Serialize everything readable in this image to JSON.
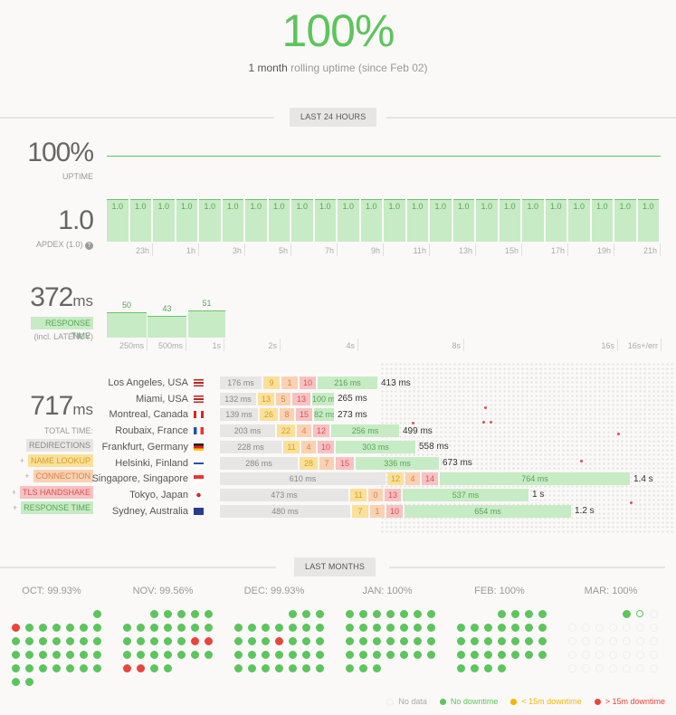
{
  "header": {
    "uptime_pct": "100%",
    "subtitle_bold": "1 month",
    "subtitle_rest": " rolling uptime (since Feb 02)"
  },
  "section_24h": {
    "label": "LAST 24 HOURS"
  },
  "uptime": {
    "value": "100%",
    "label": "UPTIME"
  },
  "apdex": {
    "value": "1.0",
    "label": "APDEX (1.0)",
    "bars": [
      "1.0",
      "1.0",
      "1.0",
      "1.0",
      "1.0",
      "1.0",
      "1.0",
      "1.0",
      "1.0",
      "1.0",
      "1.0",
      "1.0",
      "1.0",
      "1.0",
      "1.0",
      "1.0",
      "1.0",
      "1.0",
      "1.0",
      "1.0",
      "1.0",
      "1.0",
      "1.0",
      "1.0"
    ],
    "ticks": [
      "23h",
      "1h",
      "3h",
      "5h",
      "7h",
      "9h",
      "11h",
      "13h",
      "15h",
      "17h",
      "19h",
      "21h"
    ]
  },
  "response": {
    "value": "372",
    "unit": "ms",
    "label": "RESPONSE TIME",
    "sublabel": "(incl. LATENCY)",
    "bars": [
      50,
      43,
      51
    ],
    "ticks": [
      "250ms",
      "500ms",
      "1s",
      "2s",
      "4s",
      "8s",
      "16s",
      "16s+/err"
    ]
  },
  "total": {
    "value": "717",
    "unit": "ms",
    "label": "TOTAL TIME:",
    "legend": [
      "REDIRECTIONS",
      "NAME LOOKUP",
      "CONNECTION",
      "TLS HANDSHAKE",
      "RESPONSE TIME"
    ],
    "plus": "+"
  },
  "locations": [
    {
      "name": "Los Angeles, USA",
      "flag": "us",
      "redir": "176 ms",
      "dns": "9",
      "con": "1",
      "tls": "10",
      "resp": "216 ms",
      "total": "413 ms"
    },
    {
      "name": "Miami, USA",
      "flag": "us",
      "redir": "132 ms",
      "dns": "13",
      "con": "5",
      "tls": "13",
      "resp": "100 ms",
      "total": "265 ms"
    },
    {
      "name": "Montreal, Canada",
      "flag": "ca",
      "redir": "139 ms",
      "dns": "26",
      "con": "8",
      "tls": "15",
      "resp": "82 ms",
      "total": "273 ms"
    },
    {
      "name": "Roubaix, France",
      "flag": "fr",
      "redir": "203 ms",
      "dns": "22",
      "con": "4",
      "tls": "12",
      "resp": "256 ms",
      "total": "499 ms"
    },
    {
      "name": "Frankfurt, Germany",
      "flag": "de",
      "redir": "228 ms",
      "dns": "11",
      "con": "4",
      "tls": "10",
      "resp": "303 ms",
      "total": "558 ms"
    },
    {
      "name": "Helsinki, Finland",
      "flag": "fi",
      "redir": "286 ms",
      "dns": "28",
      "con": "7",
      "tls": "15",
      "resp": "336 ms",
      "total": "673 ms"
    },
    {
      "name": "Singapore, Singapore",
      "flag": "sg",
      "redir": "610 ms",
      "dns": "12",
      "con": "4",
      "tls": "14",
      "resp": "764 ms",
      "total": "1.4 s"
    },
    {
      "name": "Tokyo, Japan",
      "flag": "jp",
      "redir": "473 ms",
      "dns": "11",
      "con": "0",
      "tls": "13",
      "resp": "537 ms",
      "total": "1 s"
    },
    {
      "name": "Sydney, Australia",
      "flag": "au",
      "redir": "480 ms",
      "dns": "7",
      "con": "1",
      "tls": "10",
      "resp": "654 ms",
      "total": "1.2 s"
    }
  ],
  "section_months": {
    "label": "LAST MONTHS"
  },
  "months": [
    {
      "title": "OCT: 99.93%"
    },
    {
      "title": "NOV: 99.56%"
    },
    {
      "title": "DEC: 99.93%"
    },
    {
      "title": "JAN: 100%"
    },
    {
      "title": "FEB: 100%"
    },
    {
      "title": "MAR: 100%"
    }
  ],
  "legend": {
    "no_data": "No data",
    "no_downtime": "No downtime",
    "lt15": "< 15m downtime",
    "gt15": "> 15m downtime"
  },
  "colors": {
    "green": "#5cc55c",
    "red": "#e8453c",
    "orange": "#f5b400"
  }
}
